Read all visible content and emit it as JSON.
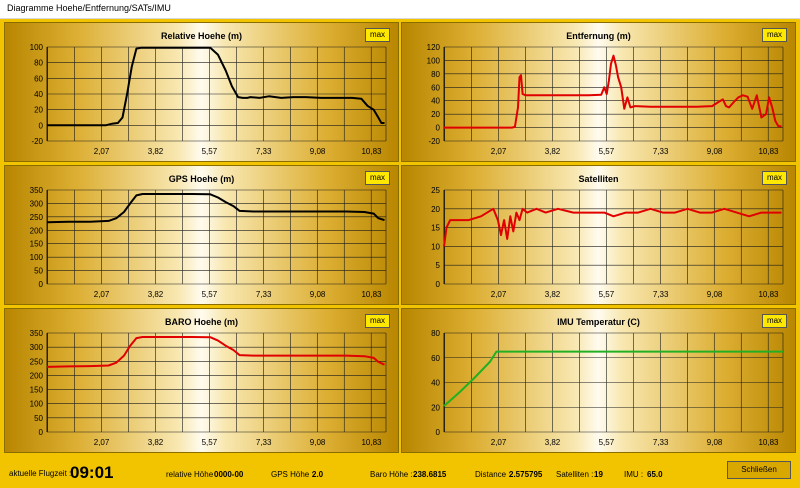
{
  "window": {
    "title": "Diagramme  Hoehe/Entfernung/SATs/IMU"
  },
  "max_label": "max",
  "x_ticks": [
    "2,07",
    "3,82",
    "5,57",
    "7,33",
    "9,08",
    "10,83"
  ],
  "colors": {
    "black_series": "#000000",
    "red_series": "#e00000",
    "green_series": "#22b022",
    "grid": "#1a1a1a"
  },
  "status": {
    "flugzeit_label": "aktuelle Flugzeit :",
    "flugzeit_value": "09:01",
    "rel_hoehe_label": "relative Höhe",
    "rel_hoehe_value": "0000-00",
    "gps_hoehe_label": "GPS Höhe :",
    "gps_hoehe_value": "2.0",
    "baro_hoehe_label": "Baro Höhe :",
    "baro_hoehe_value": "238.6815",
    "distance_label": "Distance :",
    "distance_value": "2.575795",
    "satelliten_label": "Satelliten :",
    "satelliten_value": "19",
    "imu_label": "IMU :",
    "imu_value": "65.0",
    "close_label": "Schließen"
  },
  "chart_data": [
    {
      "type": "line",
      "title": "Relative Hoehe (m)",
      "color": "#000000",
      "ylim": [
        -20,
        100
      ],
      "yticks": [
        -20,
        0,
        20,
        40,
        60,
        80,
        100
      ],
      "xlim": [
        0.3,
        11.3
      ],
      "x": [
        0.3,
        1.0,
        1.7,
        2.2,
        2.4,
        2.6,
        2.75,
        2.9,
        3.05,
        3.2,
        3.35,
        3.6,
        4.2,
        4.8,
        5.2,
        5.6,
        5.85,
        6.1,
        6.3,
        6.5,
        6.65,
        6.8,
        6.9,
        7.2,
        7.5,
        7.9,
        8.3,
        8.7,
        9.2,
        9.7,
        10.2,
        10.5,
        10.7,
        10.9,
        11.05,
        11.15,
        11.25
      ],
      "y": [
        0,
        0,
        0,
        0,
        2,
        3,
        10,
        40,
        75,
        98,
        99,
        99,
        99,
        99,
        99,
        99,
        90,
        70,
        50,
        36,
        35,
        35,
        36,
        35,
        37,
        35,
        36,
        36,
        35,
        35,
        35,
        34,
        25,
        20,
        10,
        3,
        3
      ]
    },
    {
      "type": "line",
      "title": "Entfernung (m)",
      "color": "#e00000",
      "ylim": [
        -20,
        120
      ],
      "yticks": [
        -20,
        0,
        20,
        40,
        60,
        80,
        100,
        120
      ],
      "xlim": [
        0.3,
        11.3
      ],
      "x": [
        0.3,
        1.0,
        2.0,
        2.5,
        2.6,
        2.7,
        2.75,
        2.8,
        2.85,
        2.95,
        3.05,
        3.3,
        4.0,
        4.5,
        5.0,
        5.4,
        5.5,
        5.58,
        5.65,
        5.72,
        5.8,
        5.88,
        5.95,
        6.05,
        6.15,
        6.25,
        6.35,
        6.5,
        7.0,
        7.5,
        8.0,
        8.5,
        9.0,
        9.2,
        9.35,
        9.45,
        9.55,
        9.7,
        9.85,
        10.0,
        10.15,
        10.3,
        10.45,
        10.6,
        10.75,
        10.85,
        10.95,
        11.05,
        11.15,
        11.25
      ],
      "y": [
        0,
        0,
        0,
        0,
        1,
        30,
        75,
        78,
        50,
        48,
        48,
        48,
        48,
        48,
        48,
        49,
        60,
        50,
        70,
        95,
        107,
        92,
        75,
        60,
        28,
        45,
        30,
        32,
        31,
        31,
        31,
        31,
        32,
        38,
        42,
        32,
        30,
        38,
        45,
        48,
        46,
        28,
        48,
        15,
        20,
        45,
        30,
        10,
        2,
        2
      ]
    },
    {
      "type": "line",
      "title": "GPS Hoehe (m)",
      "color": "#000000",
      "ylim": [
        0,
        350
      ],
      "yticks": [
        0,
        50,
        100,
        150,
        200,
        250,
        300,
        350
      ],
      "xlim": [
        0.3,
        11.3
      ],
      "x": [
        0.3,
        1.0,
        1.7,
        2.3,
        2.55,
        2.8,
        3.0,
        3.2,
        3.4,
        3.7,
        4.3,
        5.0,
        5.6,
        5.85,
        6.1,
        6.35,
        6.55,
        7.0,
        8.0,
        9.0,
        10.0,
        10.6,
        10.9,
        11.05,
        11.25
      ],
      "y": [
        230,
        232,
        232,
        235,
        245,
        268,
        300,
        330,
        335,
        335,
        335,
        335,
        334,
        322,
        305,
        290,
        272,
        270,
        270,
        270,
        270,
        268,
        262,
        245,
        238
      ]
    },
    {
      "type": "line",
      "title": "Satelliten",
      "color": "#e00000",
      "ylim": [
        0,
        25
      ],
      "yticks": [
        0,
        5,
        10,
        15,
        20,
        25
      ],
      "xlim": [
        0.3,
        11.3
      ],
      "x": [
        0.3,
        0.38,
        0.5,
        0.8,
        1.1,
        1.5,
        1.9,
        2.05,
        2.15,
        2.25,
        2.35,
        2.45,
        2.55,
        2.65,
        2.75,
        2.85,
        3.0,
        3.3,
        3.6,
        4.0,
        4.5,
        5.0,
        5.5,
        5.8,
        6.2,
        6.6,
        7.0,
        7.4,
        7.8,
        8.2,
        8.6,
        9.0,
        9.4,
        9.8,
        10.2,
        10.6,
        11.0,
        11.25
      ],
      "y": [
        10,
        15,
        17,
        17,
        17,
        18,
        20,
        17,
        13,
        17,
        12,
        18,
        14,
        19,
        17,
        20,
        19,
        20,
        19,
        20,
        19,
        19,
        19,
        18,
        19,
        19,
        20,
        19,
        19,
        20,
        19,
        19,
        20,
        19,
        18,
        19,
        19,
        19
      ]
    },
    {
      "type": "line",
      "title": "BARO Hoehe (m)",
      "color": "#e00000",
      "ylim": [
        0,
        350
      ],
      "yticks": [
        0,
        50,
        100,
        150,
        200,
        250,
        300,
        350
      ],
      "xlim": [
        0.3,
        11.3
      ],
      "x": [
        0.3,
        1.0,
        1.7,
        2.3,
        2.55,
        2.8,
        3.0,
        3.2,
        3.4,
        3.7,
        4.3,
        5.0,
        5.6,
        5.85,
        6.1,
        6.35,
        6.55,
        7.0,
        8.0,
        9.0,
        10.0,
        10.6,
        10.9,
        11.05,
        11.25
      ],
      "y": [
        230,
        232,
        233,
        235,
        245,
        270,
        305,
        332,
        336,
        336,
        336,
        336,
        335,
        323,
        305,
        290,
        272,
        270,
        270,
        270,
        270,
        268,
        262,
        248,
        238
      ]
    },
    {
      "type": "line",
      "title": "IMU Temperatur (C)",
      "color": "#22b022",
      "ylim": [
        0,
        80
      ],
      "yticks": [
        0,
        20,
        40,
        60,
        80
      ],
      "xlim": [
        0.3,
        11.3
      ],
      "x": [
        0.3,
        0.8,
        1.3,
        1.8,
        2.0,
        3.0,
        5.0,
        7.0,
        9.0,
        11.3
      ],
      "y": [
        21,
        32,
        44,
        57,
        65,
        65,
        65,
        65,
        65,
        65
      ]
    }
  ]
}
